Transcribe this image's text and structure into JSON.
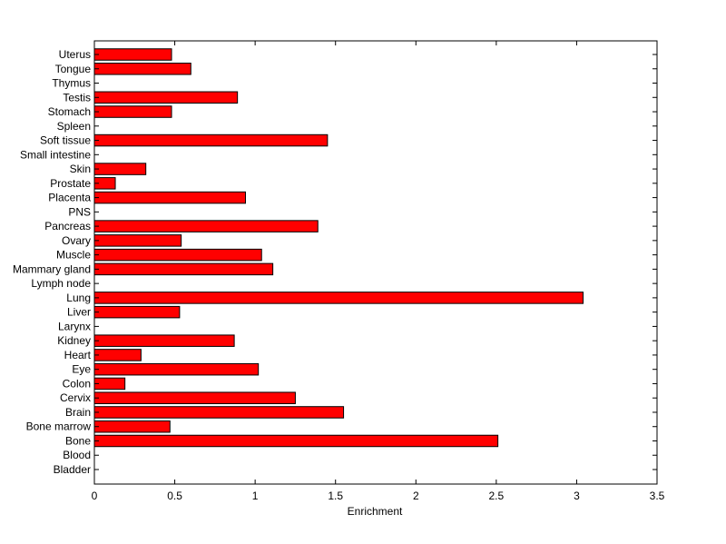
{
  "chart_data": {
    "type": "bar",
    "orientation": "horizontal",
    "title": "",
    "xlabel": "Enrichment",
    "ylabel": "",
    "xlim": [
      0,
      3.5
    ],
    "xticks": [
      0,
      0.5,
      1,
      1.5,
      2,
      2.5,
      3,
      3.5
    ],
    "xtick_labels": [
      "0",
      "0.5",
      "1",
      "1.5",
      "2",
      "2.5",
      "3",
      "3.5"
    ],
    "grid": false,
    "legend": "none",
    "bar_color": "#ff0000",
    "bar_edge_color": "#000000",
    "categories": [
      "Bladder",
      "Blood",
      "Bone",
      "Bone marrow",
      "Brain",
      "Cervix",
      "Colon",
      "Eye",
      "Heart",
      "Kidney",
      "Larynx",
      "Liver",
      "Lung",
      "Lymph node",
      "Mammary gland",
      "Muscle",
      "Ovary",
      "Pancreas",
      "PNS",
      "Placenta",
      "Prostate",
      "Skin",
      "Small intestine",
      "Soft tissue",
      "Spleen",
      "Stomach",
      "Testis",
      "Thymus",
      "Tongue",
      "Uterus"
    ],
    "values": [
      0,
      0,
      2.51,
      0.47,
      1.55,
      1.25,
      0.19,
      1.02,
      0.29,
      0.87,
      0,
      0.53,
      3.04,
      0,
      1.11,
      1.04,
      0.54,
      1.39,
      0,
      0.94,
      0.13,
      0.32,
      0,
      1.45,
      0,
      0.48,
      0.89,
      0,
      0.6,
      0.48
    ]
  }
}
